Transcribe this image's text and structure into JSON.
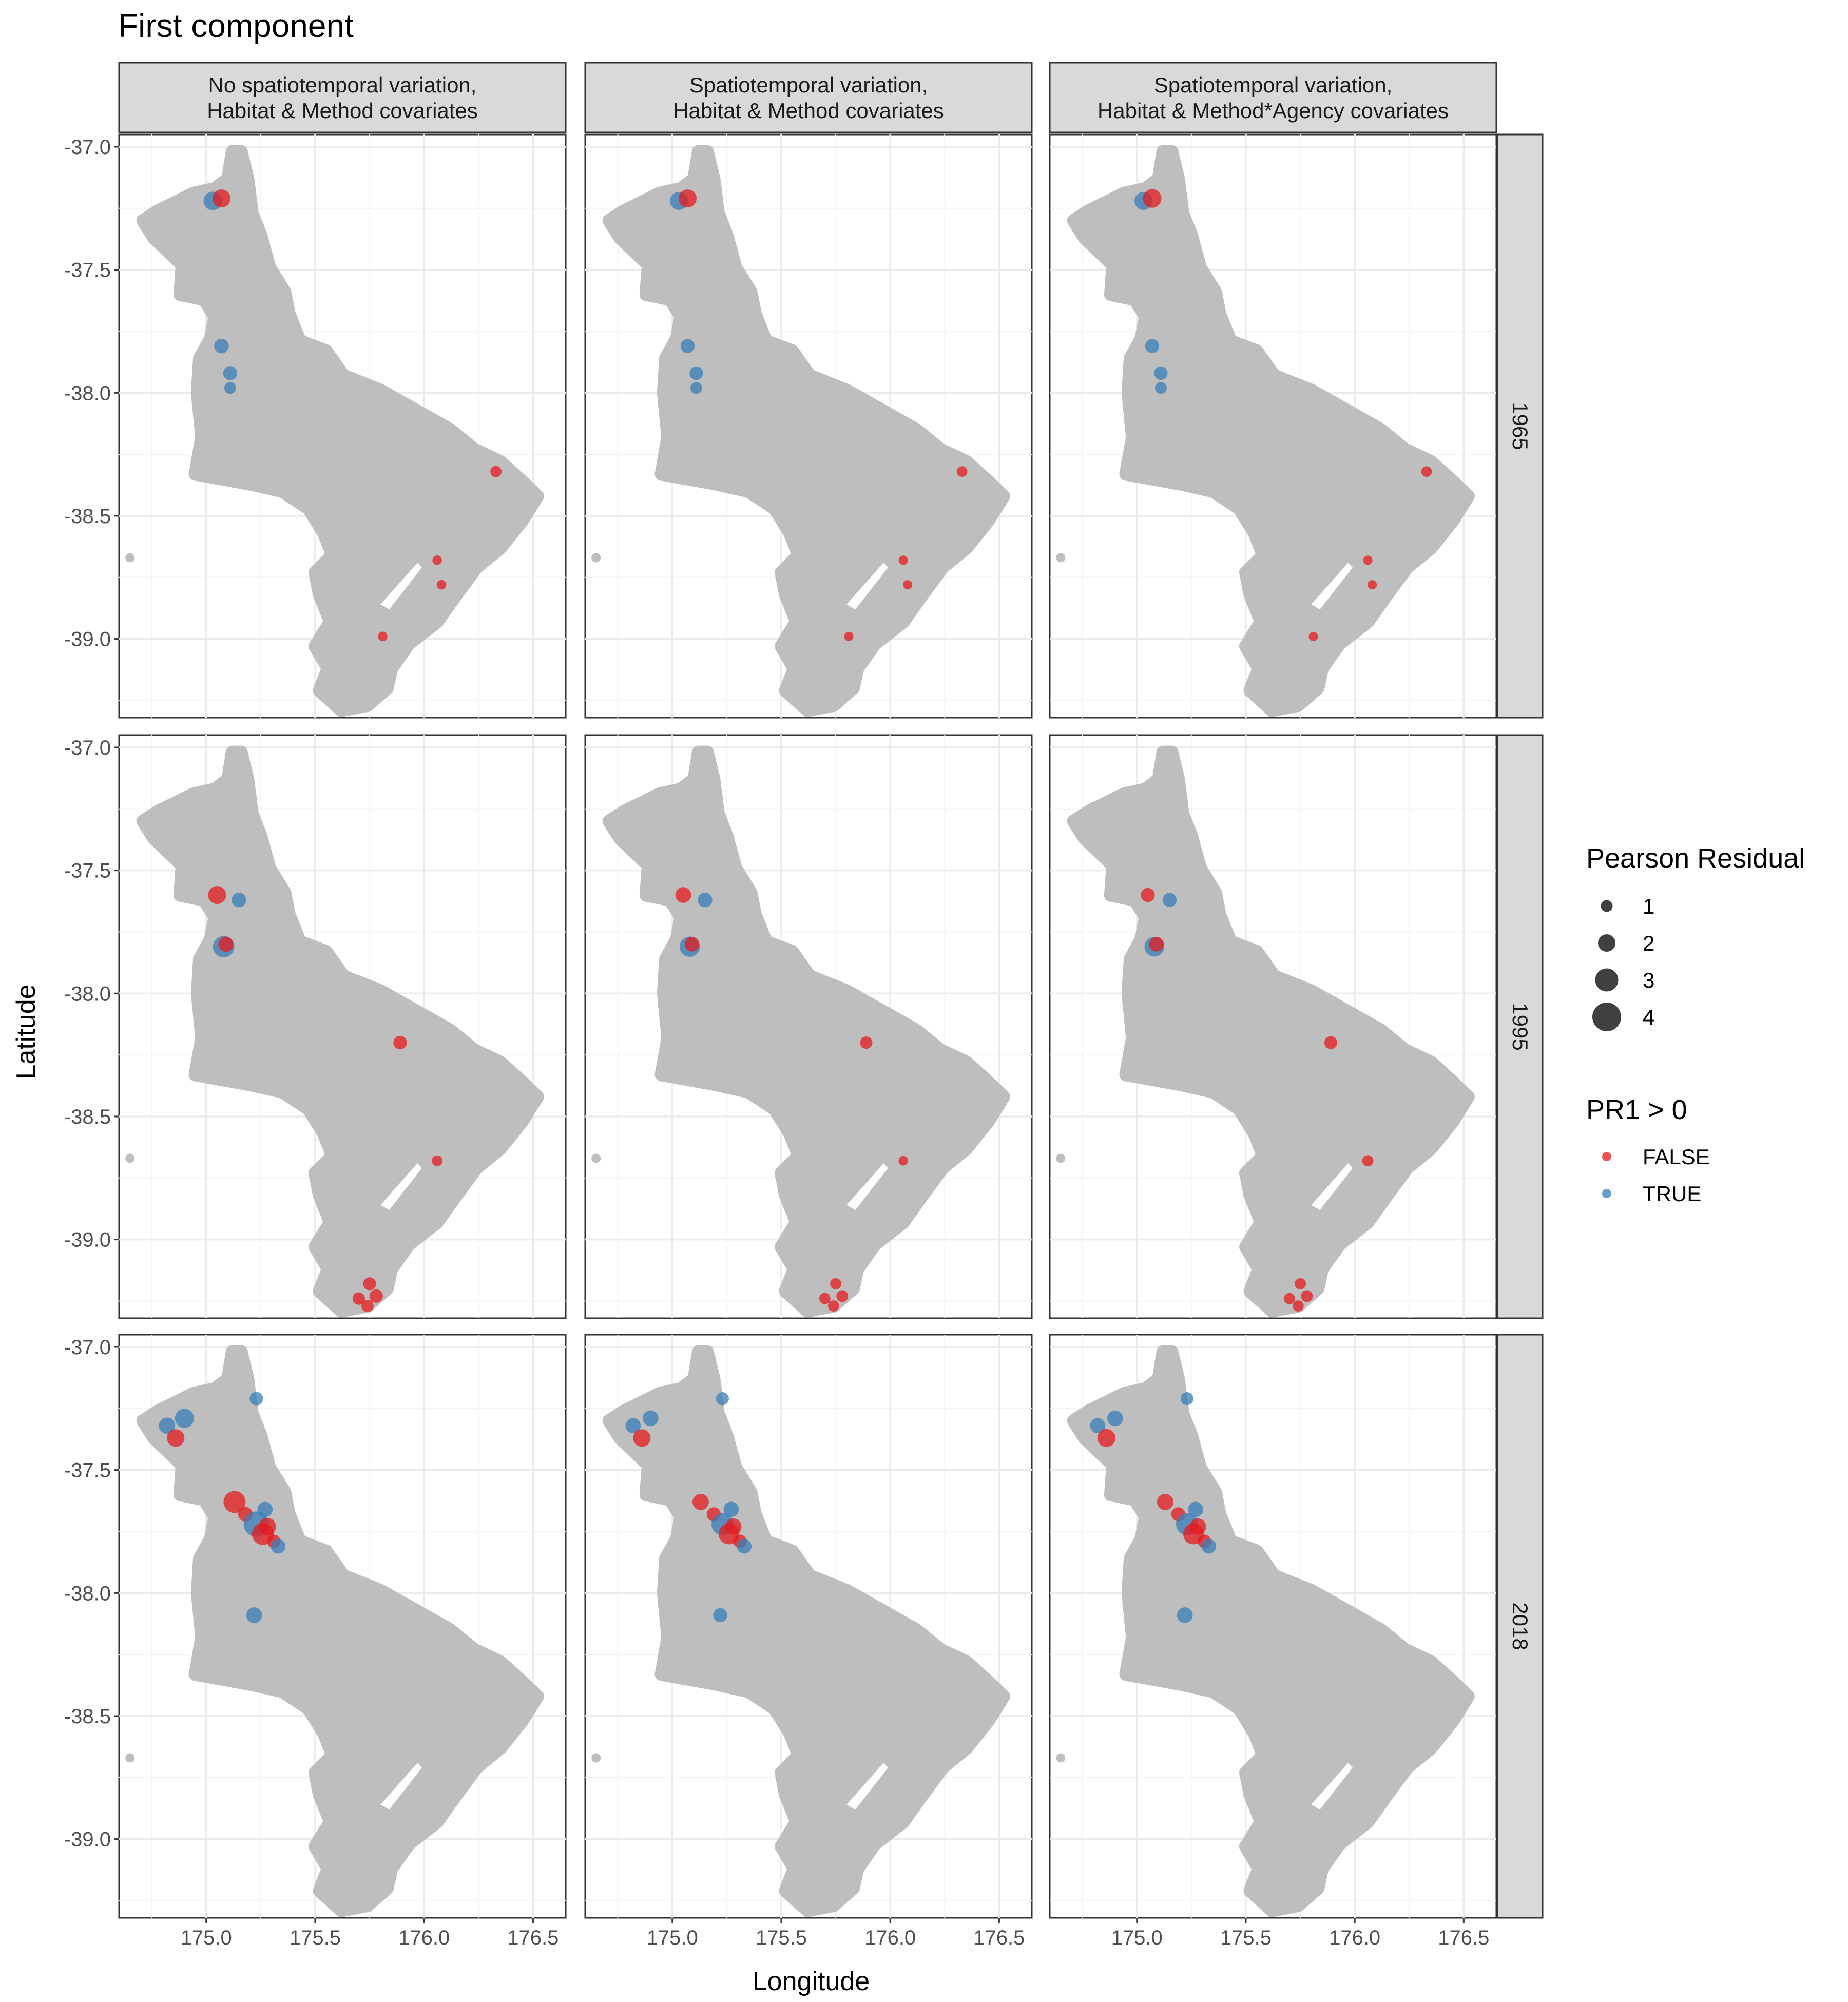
{
  "title": "First component",
  "chart_data": {
    "type": "scatter",
    "title": "First component",
    "xlabel": "Longitude",
    "ylabel": "Latitude",
    "xlim": [
      174.6,
      176.65
    ],
    "ylim": [
      -39.32,
      -36.95
    ],
    "x_ticks": [
      175.0,
      175.5,
      176.0,
      176.5
    ],
    "x_tick_labels": [
      "175.0",
      "175.5",
      "176.0",
      "176.5"
    ],
    "y_ticks": [
      -37.0,
      -37.5,
      -38.0,
      -38.5,
      -39.0
    ],
    "y_tick_labels": [
      "-37.0",
      "-37.5",
      "-38.0",
      "-38.5",
      "-39.0"
    ],
    "grid": true,
    "facet_columns": [
      [
        "No spatiotemporal variation,",
        "Habitat & Method covariates"
      ],
      [
        "Spatiotemporal variation,",
        "Habitat & Method covariates"
      ],
      [
        "Spatiotemporal variation,",
        "Habitat & Method*Agency covariates"
      ]
    ],
    "facet_rows": [
      "1965",
      "1995",
      "2018"
    ],
    "background_region_color": "#bebebe",
    "colors": {
      "FALSE": "#e41a1c",
      "TRUE": "#377eb8"
    },
    "legend": {
      "placement": "right",
      "size_title": "Pearson Residual",
      "size_values": [
        1,
        2,
        3,
        4
      ],
      "color_title": "PR1 > 0",
      "color_values": [
        "FALSE",
        "TRUE"
      ]
    },
    "panels": [
      {
        "row": "1965",
        "col": 0,
        "points": [
          {
            "x": 175.03,
            "y": -37.22,
            "r": 2.2,
            "pos": true
          },
          {
            "x": 175.07,
            "y": -37.21,
            "r": 2.1,
            "pos": false
          },
          {
            "x": 175.07,
            "y": -37.81,
            "r": 1.5,
            "pos": true
          },
          {
            "x": 175.11,
            "y": -37.92,
            "r": 1.4,
            "pos": true
          },
          {
            "x": 175.11,
            "y": -37.98,
            "r": 1.0,
            "pos": true
          },
          {
            "x": 176.33,
            "y": -38.32,
            "r": 0.9,
            "pos": false
          },
          {
            "x": 176.06,
            "y": -38.68,
            "r": 0.6,
            "pos": false
          },
          {
            "x": 176.08,
            "y": -38.78,
            "r": 0.6,
            "pos": false
          },
          {
            "x": 175.81,
            "y": -38.99,
            "r": 0.6,
            "pos": false
          }
        ]
      },
      {
        "row": "1965",
        "col": 1,
        "points": [
          {
            "x": 175.03,
            "y": -37.22,
            "r": 2.1,
            "pos": true
          },
          {
            "x": 175.07,
            "y": -37.21,
            "r": 2.1,
            "pos": false
          },
          {
            "x": 175.07,
            "y": -37.81,
            "r": 1.4,
            "pos": true
          },
          {
            "x": 175.11,
            "y": -37.92,
            "r": 1.3,
            "pos": true
          },
          {
            "x": 175.11,
            "y": -37.98,
            "r": 1.0,
            "pos": true
          },
          {
            "x": 176.33,
            "y": -38.32,
            "r": 0.8,
            "pos": false
          },
          {
            "x": 176.06,
            "y": -38.68,
            "r": 0.55,
            "pos": false
          },
          {
            "x": 176.08,
            "y": -38.78,
            "r": 0.55,
            "pos": false
          },
          {
            "x": 175.81,
            "y": -38.99,
            "r": 0.55,
            "pos": false
          }
        ]
      },
      {
        "row": "1965",
        "col": 2,
        "points": [
          {
            "x": 175.03,
            "y": -37.22,
            "r": 2.1,
            "pos": true
          },
          {
            "x": 175.07,
            "y": -37.21,
            "r": 2.2,
            "pos": false
          },
          {
            "x": 175.07,
            "y": -37.81,
            "r": 1.4,
            "pos": true
          },
          {
            "x": 175.11,
            "y": -37.92,
            "r": 1.3,
            "pos": true
          },
          {
            "x": 175.11,
            "y": -37.98,
            "r": 1.0,
            "pos": true
          },
          {
            "x": 176.33,
            "y": -38.32,
            "r": 0.8,
            "pos": false
          },
          {
            "x": 176.06,
            "y": -38.68,
            "r": 0.55,
            "pos": false
          },
          {
            "x": 176.08,
            "y": -38.78,
            "r": 0.55,
            "pos": false
          },
          {
            "x": 175.81,
            "y": -38.99,
            "r": 0.55,
            "pos": false
          }
        ]
      },
      {
        "row": "1995",
        "col": 0,
        "points": [
          {
            "x": 175.05,
            "y": -37.6,
            "r": 2.1,
            "pos": false
          },
          {
            "x": 175.15,
            "y": -37.62,
            "r": 1.5,
            "pos": true
          },
          {
            "x": 175.08,
            "y": -37.81,
            "r": 2.7,
            "pos": true
          },
          {
            "x": 175.09,
            "y": -37.8,
            "r": 1.6,
            "pos": false
          },
          {
            "x": 175.89,
            "y": -38.2,
            "r": 1.3,
            "pos": false
          },
          {
            "x": 176.06,
            "y": -38.68,
            "r": 0.8,
            "pos": false
          },
          {
            "x": 175.75,
            "y": -39.18,
            "r": 1.2,
            "pos": false
          },
          {
            "x": 175.7,
            "y": -39.24,
            "r": 1.1,
            "pos": false
          },
          {
            "x": 175.78,
            "y": -39.23,
            "r": 1.3,
            "pos": false
          },
          {
            "x": 175.74,
            "y": -39.27,
            "r": 1.1,
            "pos": false
          }
        ]
      },
      {
        "row": "1995",
        "col": 1,
        "points": [
          {
            "x": 175.05,
            "y": -37.6,
            "r": 1.7,
            "pos": false
          },
          {
            "x": 175.15,
            "y": -37.62,
            "r": 1.5,
            "pos": true
          },
          {
            "x": 175.08,
            "y": -37.81,
            "r": 2.5,
            "pos": true
          },
          {
            "x": 175.09,
            "y": -37.8,
            "r": 1.5,
            "pos": false
          },
          {
            "x": 175.89,
            "y": -38.2,
            "r": 1.1,
            "pos": false
          },
          {
            "x": 176.06,
            "y": -38.68,
            "r": 0.6,
            "pos": false
          },
          {
            "x": 175.75,
            "y": -39.18,
            "r": 0.9,
            "pos": false
          },
          {
            "x": 175.7,
            "y": -39.24,
            "r": 0.9,
            "pos": false
          },
          {
            "x": 175.78,
            "y": -39.23,
            "r": 1.0,
            "pos": false
          },
          {
            "x": 175.74,
            "y": -39.27,
            "r": 0.9,
            "pos": false
          }
        ]
      },
      {
        "row": "1995",
        "col": 2,
        "points": [
          {
            "x": 175.05,
            "y": -37.6,
            "r": 1.4,
            "pos": false
          },
          {
            "x": 175.15,
            "y": -37.62,
            "r": 1.4,
            "pos": true
          },
          {
            "x": 175.08,
            "y": -37.81,
            "r": 2.4,
            "pos": true
          },
          {
            "x": 175.09,
            "y": -37.8,
            "r": 1.5,
            "pos": false
          },
          {
            "x": 175.89,
            "y": -38.2,
            "r": 1.2,
            "pos": false
          },
          {
            "x": 176.06,
            "y": -38.68,
            "r": 0.9,
            "pos": false
          },
          {
            "x": 175.75,
            "y": -39.18,
            "r": 0.9,
            "pos": false
          },
          {
            "x": 175.7,
            "y": -39.24,
            "r": 0.9,
            "pos": false
          },
          {
            "x": 175.78,
            "y": -39.23,
            "r": 1.0,
            "pos": false
          },
          {
            "x": 175.74,
            "y": -39.27,
            "r": 0.9,
            "pos": false
          }
        ]
      },
      {
        "row": "2018",
        "col": 0,
        "points": [
          {
            "x": 174.82,
            "y": -37.32,
            "r": 1.8,
            "pos": true
          },
          {
            "x": 174.9,
            "y": -37.29,
            "r": 2.3,
            "pos": true
          },
          {
            "x": 174.86,
            "y": -37.37,
            "r": 2.0,
            "pos": false
          },
          {
            "x": 175.23,
            "y": -37.21,
            "r": 1.3,
            "pos": true
          },
          {
            "x": 175.13,
            "y": -37.63,
            "r": 2.8,
            "pos": false
          },
          {
            "x": 175.18,
            "y": -37.68,
            "r": 1.5,
            "pos": false
          },
          {
            "x": 175.27,
            "y": -37.66,
            "r": 1.6,
            "pos": true
          },
          {
            "x": 175.23,
            "y": -37.72,
            "r": 3.4,
            "pos": true
          },
          {
            "x": 175.26,
            "y": -37.76,
            "r": 2.8,
            "pos": false
          },
          {
            "x": 175.28,
            "y": -37.73,
            "r": 2.0,
            "pos": false
          },
          {
            "x": 175.31,
            "y": -37.79,
            "r": 1.3,
            "pos": false
          },
          {
            "x": 175.33,
            "y": -37.81,
            "r": 1.5,
            "pos": true
          },
          {
            "x": 175.22,
            "y": -38.09,
            "r": 1.7,
            "pos": true
          }
        ]
      },
      {
        "row": "2018",
        "col": 1,
        "points": [
          {
            "x": 174.82,
            "y": -37.32,
            "r": 1.6,
            "pos": true
          },
          {
            "x": 174.9,
            "y": -37.29,
            "r": 1.7,
            "pos": true
          },
          {
            "x": 174.86,
            "y": -37.37,
            "r": 2.0,
            "pos": false
          },
          {
            "x": 175.23,
            "y": -37.21,
            "r": 1.2,
            "pos": true
          },
          {
            "x": 175.13,
            "y": -37.63,
            "r": 1.8,
            "pos": false
          },
          {
            "x": 175.19,
            "y": -37.68,
            "r": 1.4,
            "pos": false
          },
          {
            "x": 175.27,
            "y": -37.66,
            "r": 1.6,
            "pos": true
          },
          {
            "x": 175.23,
            "y": -37.72,
            "r": 2.8,
            "pos": true
          },
          {
            "x": 175.26,
            "y": -37.76,
            "r": 2.6,
            "pos": false
          },
          {
            "x": 175.28,
            "y": -37.73,
            "r": 1.8,
            "pos": false
          },
          {
            "x": 175.31,
            "y": -37.79,
            "r": 1.3,
            "pos": false
          },
          {
            "x": 175.33,
            "y": -37.81,
            "r": 1.5,
            "pos": true
          },
          {
            "x": 175.22,
            "y": -38.09,
            "r": 1.4,
            "pos": true
          }
        ]
      },
      {
        "row": "2018",
        "col": 2,
        "points": [
          {
            "x": 174.82,
            "y": -37.32,
            "r": 1.6,
            "pos": true
          },
          {
            "x": 174.9,
            "y": -37.29,
            "r": 1.7,
            "pos": true
          },
          {
            "x": 174.86,
            "y": -37.37,
            "r": 2.1,
            "pos": false
          },
          {
            "x": 175.23,
            "y": -37.21,
            "r": 1.2,
            "pos": true
          },
          {
            "x": 175.13,
            "y": -37.63,
            "r": 1.8,
            "pos": false
          },
          {
            "x": 175.19,
            "y": -37.68,
            "r": 1.4,
            "pos": false
          },
          {
            "x": 175.27,
            "y": -37.66,
            "r": 1.6,
            "pos": true
          },
          {
            "x": 175.23,
            "y": -37.72,
            "r": 2.8,
            "pos": true
          },
          {
            "x": 175.26,
            "y": -37.76,
            "r": 2.6,
            "pos": false
          },
          {
            "x": 175.28,
            "y": -37.73,
            "r": 1.8,
            "pos": false
          },
          {
            "x": 175.31,
            "y": -37.79,
            "r": 1.3,
            "pos": false
          },
          {
            "x": 175.33,
            "y": -37.81,
            "r": 1.5,
            "pos": true
          },
          {
            "x": 175.22,
            "y": -38.09,
            "r": 1.7,
            "pos": true
          }
        ]
      }
    ]
  }
}
